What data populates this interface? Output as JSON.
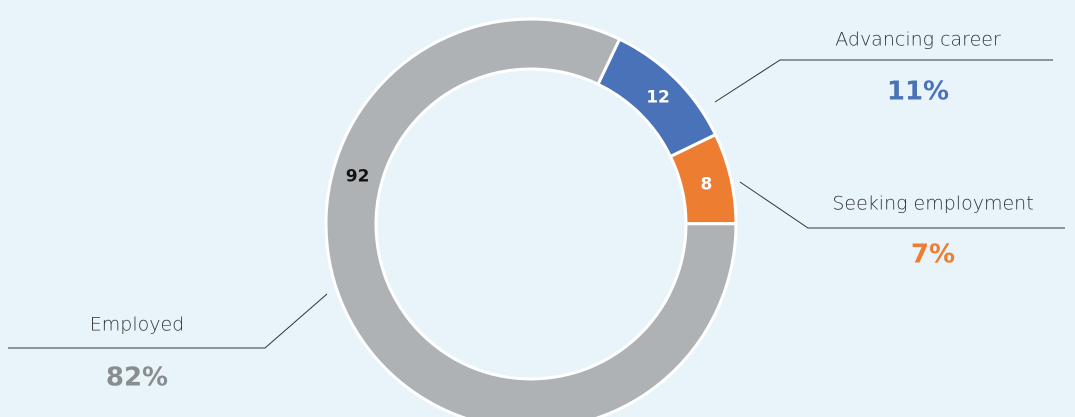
{
  "chart_data": {
    "type": "donut",
    "categories": [
      "Advancing career",
      "Seeking employment",
      "Employed"
    ],
    "values": [
      12,
      8,
      92
    ],
    "colors": [
      "#4a72b8",
      "#ed7d31",
      "#afb2b5"
    ],
    "value_text_colors": [
      "#ffffff",
      "#ffffff",
      "#111111"
    ],
    "share_labels": [
      "11%",
      "7%",
      "82%"
    ],
    "share_label_colors": [
      "#4a72b8",
      "#ed7d31",
      "#8a8d90"
    ]
  }
}
